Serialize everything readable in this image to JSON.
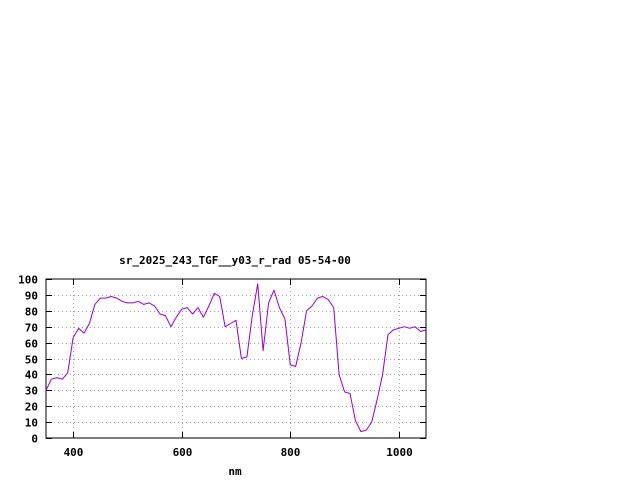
{
  "chart_data": {
    "type": "line",
    "title": "sr_2025_243_TGF__y03_r_rad 05-54-00",
    "xlabel": "nm",
    "ylabel": "",
    "xlim": [
      350,
      1050
    ],
    "ylim": [
      0,
      100
    ],
    "xticks": [
      400,
      600,
      800,
      1000
    ],
    "yticks": [
      0,
      10,
      20,
      30,
      40,
      50,
      60,
      70,
      80,
      90,
      100
    ],
    "grid": true,
    "legend": "none",
    "series": [
      {
        "color": "#9400d3",
        "x": [
          350,
          360,
          370,
          380,
          390,
          400,
          410,
          420,
          430,
          440,
          450,
          460,
          470,
          480,
          490,
          500,
          510,
          520,
          530,
          540,
          550,
          560,
          570,
          580,
          590,
          600,
          610,
          620,
          630,
          640,
          650,
          660,
          670,
          680,
          690,
          700,
          710,
          720,
          730,
          740,
          750,
          760,
          770,
          780,
          790,
          800,
          810,
          820,
          830,
          840,
          850,
          860,
          870,
          880,
          890,
          900,
          910,
          920,
          930,
          940,
          950,
          960,
          970,
          980,
          990,
          1000,
          1010,
          1020,
          1030,
          1040,
          1050
        ],
        "y": [
          30,
          37,
          38,
          37,
          41,
          63,
          69,
          66,
          72,
          84,
          88,
          88,
          89,
          88,
          86,
          85,
          85,
          86,
          84,
          85,
          83,
          78,
          77,
          70,
          76,
          81,
          82,
          78,
          82,
          76,
          83,
          91,
          89,
          70,
          72,
          74,
          50,
          51,
          77,
          97,
          55,
          85,
          93,
          82,
          75,
          46,
          45,
          60,
          80,
          83,
          88,
          89,
          87,
          82,
          40,
          29,
          28,
          11,
          4,
          5,
          10,
          24,
          40,
          65,
          68,
          69,
          70,
          69,
          70,
          67,
          68
        ]
      }
    ]
  }
}
